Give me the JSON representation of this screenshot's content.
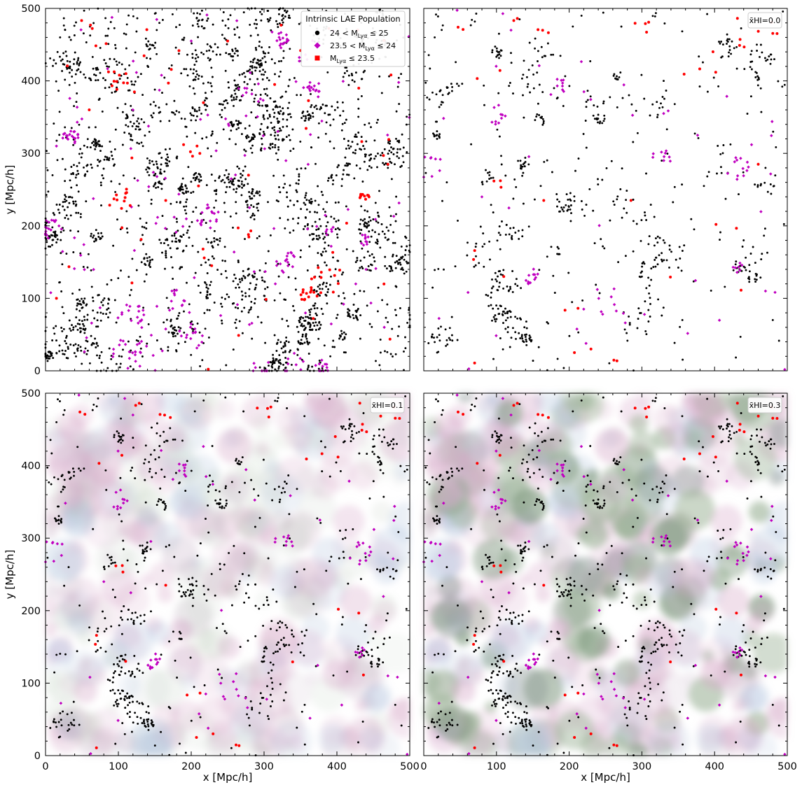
{
  "figure": {
    "background": "#ffffff",
    "x_unit_label": "x [Mpc/h]",
    "y_unit_label": "y [Mpc/h]"
  },
  "legend": {
    "title": "Intrinsic LAE Population",
    "entries": [
      {
        "label_pre": "24 < M",
        "label_sub": "Lyα",
        "label_post": " ≤ 25",
        "color": "#000000",
        "marker": "circle"
      },
      {
        "label_pre": "23.5 < M",
        "label_sub": "Lyα",
        "label_post": " ≤ 24",
        "color": "#c000c0",
        "marker": "diamond"
      },
      {
        "label_pre": "M",
        "label_sub": "Lyα",
        "label_post": " ≤ 23.5",
        "color": "#ff0000",
        "marker": "square"
      }
    ]
  },
  "chart_data": [
    {
      "panel": "top-left",
      "type": "scatter",
      "title": "",
      "xlabel": "",
      "ylabel": "y [Mpc/h]",
      "xlim": [
        0,
        500
      ],
      "ylim": [
        0,
        500
      ],
      "xticks": [
        0,
        100,
        200,
        300,
        400,
        500
      ],
      "yticks": [
        0,
        100,
        200,
        300,
        400,
        500
      ],
      "show_x_tick_labels": false,
      "show_y_tick_labels": true,
      "neutral_fraction_label": null,
      "neutral_fraction_value": null,
      "has_legend": true,
      "has_neutral_field": false,
      "approx_counts": {
        "black": 2400,
        "magenta": 330,
        "red": 105
      },
      "series": [
        {
          "name": "24 < MLyα ≤ 25",
          "color": "#000000",
          "sample_points": [
            [
              20,
              460
            ],
            [
              210,
              475
            ],
            [
              250,
              455
            ],
            [
              165,
              235
            ],
            [
              470,
              280
            ],
            [
              330,
              385
            ],
            [
              370,
              130
            ],
            [
              130,
              210
            ],
            [
              220,
              360
            ],
            [
              410,
              320
            ]
          ]
        },
        {
          "name": "23.5 < MLyα ≤ 24",
          "color": "#c000c0",
          "sample_points": [
            [
              120,
              360
            ],
            [
              255,
              265
            ],
            [
              330,
              290
            ],
            [
              465,
              60
            ],
            [
              15,
              310
            ],
            [
              440,
              140
            ],
            [
              200,
              455
            ],
            [
              280,
              225
            ]
          ]
        },
        {
          "name": "MLyα ≤ 23.5",
          "color": "#ff0000",
          "sample_points": [
            [
              165,
              235
            ],
            [
              250,
              455
            ],
            [
              110,
              245
            ],
            [
              15,
              100
            ],
            [
              470,
              285
            ],
            [
              210,
              255
            ],
            [
              430,
              390
            ],
            [
              60,
              360
            ]
          ]
        }
      ]
    },
    {
      "panel": "top-right",
      "type": "scatter",
      "title": "",
      "xlabel": "",
      "ylabel": "",
      "xlim": [
        0,
        500
      ],
      "ylim": [
        0,
        500
      ],
      "xticks": [
        0,
        100,
        200,
        300,
        400,
        500
      ],
      "yticks": [
        0,
        100,
        200,
        300,
        400,
        500
      ],
      "show_x_tick_labels": false,
      "show_y_tick_labels": false,
      "neutral_fraction_label": "x̄HI=0.0",
      "neutral_fraction_value": 0.0,
      "has_legend": false,
      "has_neutral_field": false,
      "approx_counts": {
        "black": 720,
        "magenta": 110,
        "red": 40
      },
      "series": [
        {
          "name": "24 < MLyα ≤ 25",
          "color": "#000000",
          "sample_points": [
            [
              205,
              475
            ],
            [
              15,
              460
            ],
            [
              470,
              280
            ],
            [
              440,
              180
            ],
            [
              300,
              130
            ],
            [
              330,
              400
            ]
          ]
        },
        {
          "name": "23.5 < MLyα ≤ 24",
          "color": "#c000c0",
          "sample_points": [
            [
              120,
              470
            ],
            [
              470,
              110
            ],
            [
              220,
              85
            ],
            [
              80,
              240
            ],
            [
              330,
              355
            ]
          ]
        },
        {
          "name": "MLyα ≤ 23.5",
          "color": "#ff0000",
          "sample_points": [
            [
              165,
              235
            ],
            [
              230,
              30
            ],
            [
              285,
              235
            ],
            [
              460,
              285
            ],
            [
              110,
              130
            ]
          ]
        }
      ]
    },
    {
      "panel": "bottom-left",
      "type": "scatter",
      "title": "",
      "xlabel": "x [Mpc/h]",
      "ylabel": "y [Mpc/h]",
      "xlim": [
        0,
        500
      ],
      "ylim": [
        0,
        500
      ],
      "xticks": [
        0,
        100,
        200,
        300,
        400,
        500
      ],
      "yticks": [
        0,
        100,
        200,
        300,
        400,
        500
      ],
      "show_x_tick_labels": true,
      "show_y_tick_labels": true,
      "neutral_fraction_label": "x̄HI=0.1",
      "neutral_fraction_value": 0.1,
      "has_legend": false,
      "has_neutral_field": true,
      "neutral_field_strength": 0.35,
      "approx_counts": {
        "black": 720,
        "magenta": 110,
        "red": 40
      },
      "series": [
        {
          "name": "24 < MLyα ≤ 25",
          "color": "#000000",
          "sample_points": [
            [
              205,
              475
            ],
            [
              15,
              460
            ],
            [
              470,
              280
            ],
            [
              440,
              180
            ],
            [
              300,
              130
            ]
          ]
        },
        {
          "name": "23.5 < MLyα ≤ 24",
          "color": "#c000c0",
          "sample_points": [
            [
              120,
              470
            ],
            [
              470,
              110
            ],
            [
              220,
              85
            ],
            [
              80,
              240
            ]
          ]
        },
        {
          "name": "MLyα ≤ 23.5",
          "color": "#ff0000",
          "sample_points": [
            [
              165,
              235
            ],
            [
              230,
              30
            ],
            [
              110,
              130
            ]
          ]
        }
      ]
    },
    {
      "panel": "bottom-right",
      "type": "scatter",
      "title": "",
      "xlabel": "x [Mpc/h]",
      "ylabel": "",
      "xlim": [
        0,
        500
      ],
      "ylim": [
        0,
        500
      ],
      "xticks": [
        0,
        100,
        200,
        300,
        400,
        500
      ],
      "yticks": [
        0,
        100,
        200,
        300,
        400,
        500
      ],
      "show_x_tick_labels": true,
      "show_y_tick_labels": false,
      "neutral_fraction_label": "x̄HI=0.3",
      "neutral_fraction_value": 0.3,
      "has_legend": false,
      "has_neutral_field": true,
      "neutral_field_strength": 0.85,
      "approx_counts": {
        "black": 720,
        "magenta": 110,
        "red": 40
      },
      "series": [
        {
          "name": "24 < MLyα ≤ 25",
          "color": "#000000",
          "sample_points": [
            [
              205,
              475
            ],
            [
              15,
              460
            ],
            [
              470,
              280
            ],
            [
              440,
              180
            ],
            [
              300,
              130
            ]
          ]
        },
        {
          "name": "23.5 < MLyα ≤ 24",
          "color": "#c000c0",
          "sample_points": [
            [
              120,
              470
            ],
            [
              470,
              110
            ],
            [
              220,
              85
            ],
            [
              80,
              240
            ]
          ]
        },
        {
          "name": "MLyα ≤ 23.5",
          "color": "#ff0000",
          "sample_points": [
            [
              165,
              235
            ],
            [
              230,
              30
            ],
            [
              110,
              130
            ]
          ]
        }
      ]
    }
  ]
}
